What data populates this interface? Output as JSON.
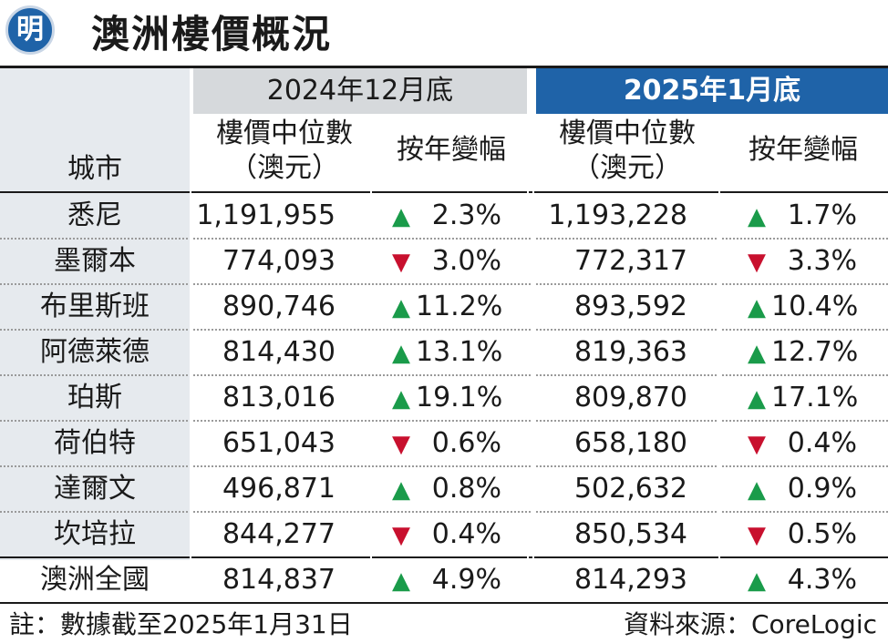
{
  "header": {
    "logo": "明",
    "title": "澳洲樓價概況"
  },
  "columns": {
    "city": "城市",
    "group_2024": "2024年12月底",
    "group_2025": "2025年1月底",
    "median_line1": "樓價中位數",
    "median_line2": "（澳元）",
    "yoy": "按年變幅"
  },
  "chart_data": {
    "type": "table",
    "columns": [
      "城市",
      "2024年12月底 樓價中位數（澳元）",
      "2024年12月底 按年變幅",
      "2025年1月底 樓價中位數（澳元）",
      "2025年1月底 按年變幅"
    ],
    "rows": [
      {
        "city": "悉尼",
        "v1": "1,191,955",
        "d1": "up",
        "c1": "2.3%",
        "v2": "1,193,228",
        "d2": "up",
        "c2": "1.7%"
      },
      {
        "city": "墨爾本",
        "v1": "774,093",
        "d1": "down",
        "c1": "3.0%",
        "v2": "772,317",
        "d2": "down",
        "c2": "3.3%"
      },
      {
        "city": "布里斯班",
        "v1": "890,746",
        "d1": "up",
        "c1": "11.2%",
        "v2": "893,592",
        "d2": "up",
        "c2": "10.4%"
      },
      {
        "city": "阿德萊德",
        "v1": "814,430",
        "d1": "up",
        "c1": "13.1%",
        "v2": "819,363",
        "d2": "up",
        "c2": "12.7%"
      },
      {
        "city": "珀斯",
        "v1": "813,016",
        "d1": "up",
        "c1": "19.1%",
        "v2": "809,870",
        "d2": "up",
        "c2": "17.1%"
      },
      {
        "city": "荷伯特",
        "v1": "651,043",
        "d1": "down",
        "c1": "0.6%",
        "v2": "658,180",
        "d2": "down",
        "c2": "0.4%"
      },
      {
        "city": "達爾文",
        "v1": "496,871",
        "d1": "up",
        "c1": "0.8%",
        "v2": "502,632",
        "d2": "up",
        "c2": "0.9%"
      },
      {
        "city": "坎培拉",
        "v1": "844,277",
        "d1": "down",
        "c1": "0.4%",
        "v2": "850,534",
        "d2": "down",
        "c2": "0.5%"
      },
      {
        "city": "澳洲全國",
        "v1": "814,837",
        "d1": "up",
        "c1": "4.9%",
        "v2": "814,293",
        "d2": "up",
        "c2": "4.3%"
      }
    ],
    "up_symbol": "▲",
    "down_symbol": "▼",
    "colors": {
      "up": "#1a9b4a",
      "down": "#c8102e",
      "accent": "#1f63a8"
    }
  },
  "footer": {
    "note": "註：數據截至2025年1月31日",
    "source": "資料來源：CoreLogic"
  }
}
